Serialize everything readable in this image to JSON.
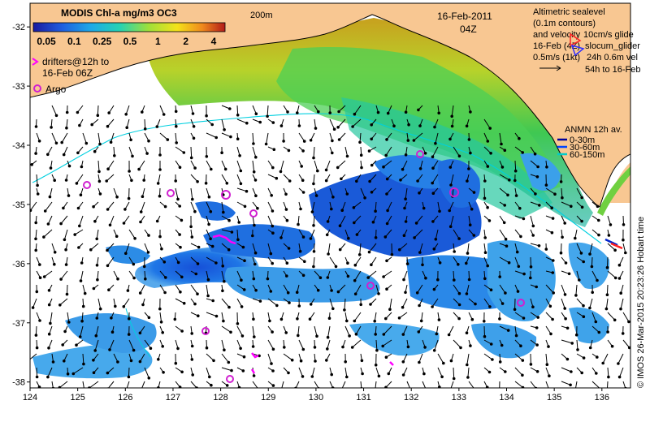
{
  "colorbar": {
    "title": "MODIS Chl-a mg/m3 OC3",
    "ticks": [
      "0.05",
      "0.1",
      "0.25",
      "0.5",
      "1",
      "2",
      "4"
    ]
  },
  "scale_label": "200m",
  "date": "16-Feb-2011",
  "time": "04Z",
  "legend_top_right": {
    "line1": "Altimetric sealevel",
    "line2": "(0.1m contours)",
    "line3": "and velocity",
    "line3b": "10cm/s glide",
    "line4": "16-Feb (4Z)",
    "line4b": "slocum_glider",
    "line5": "0.5m/s (1kt)",
    "line5b": "24h 0.6m vel",
    "line6": "54h to 16-Feb"
  },
  "legend_left": {
    "drifters_line1": "drifters@12h to",
    "drifters_line2": "16-Feb 06Z",
    "argo": "Argo"
  },
  "anmn_legend": {
    "title": "ANMN 12h av.",
    "items": [
      {
        "label": "0-30m",
        "color": "#000099"
      },
      {
        "label": "30-60m",
        "color": "#0044ff"
      },
      {
        "label": "60-150m",
        "color": "#00cccc"
      }
    ]
  },
  "credit": "© IMOS 26-Mar-2015 20:23:26 Hobart time",
  "axes": {
    "x_ticks": [
      "124",
      "125",
      "126",
      "127",
      "128",
      "129",
      "130",
      "131",
      "132",
      "133",
      "134",
      "135",
      "136"
    ],
    "y_ticks": [
      "-32",
      "-33",
      "-34",
      "-35",
      "-36",
      "-37",
      "-38"
    ],
    "lon_range": [
      124,
      136.6
    ],
    "lat_range": [
      -38.1,
      -31.6
    ]
  },
  "colors": {
    "land": "#f8c792",
    "coast_line": "#000000",
    "argo": "#d020d0",
    "drifter": "#ff00ff"
  }
}
